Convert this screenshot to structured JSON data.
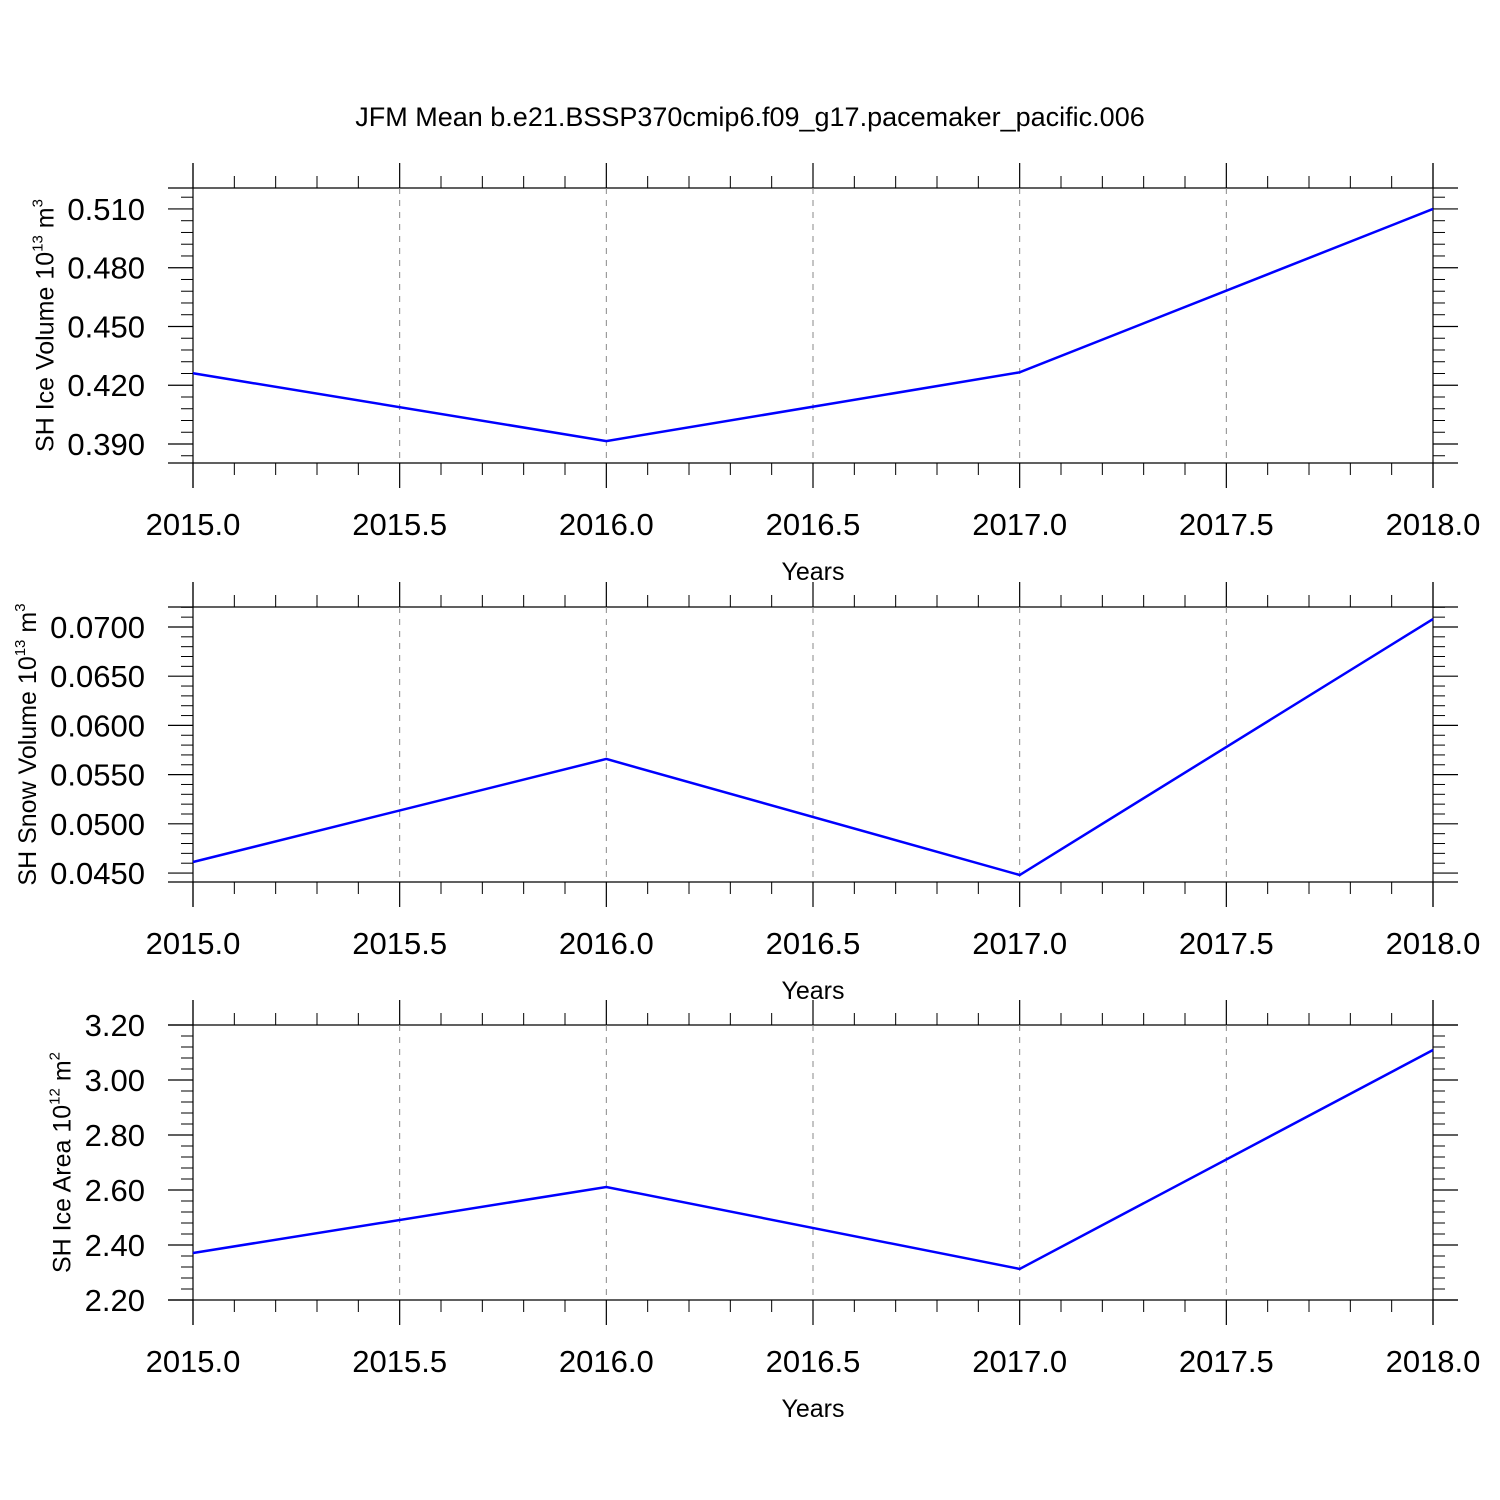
{
  "chart_data": [
    {
      "type": "line",
      "title": "JFM Mean b.e21.BSSP370cmip6.f09_g17.pacemaker_pacific.006",
      "x": [
        2015,
        2016,
        2017,
        2018
      ],
      "series": [
        {
          "color": "#0000ff",
          "values": [
            0.4261,
            0.3915,
            0.4266,
            0.51
          ]
        }
      ],
      "xlabel": "Years",
      "ylabel": {
        "text": "SH Ice Volume 10",
        "sup": "13",
        "unit": "m",
        "unit_sup": "3"
      },
      "xlim": [
        2015,
        2018
      ],
      "ylim": [
        0.3803,
        0.5207
      ],
      "xticks": [
        {
          "value": 2015,
          "label": "2015.0"
        },
        {
          "value": 2015.5,
          "label": "2015.5"
        },
        {
          "value": 2016,
          "label": "2016.0"
        },
        {
          "value": 2016.5,
          "label": "2016.5"
        },
        {
          "value": 2017,
          "label": "2017.0"
        },
        {
          "value": 2017.5,
          "label": "2017.5"
        },
        {
          "value": 2018,
          "label": "2018.0"
        }
      ],
      "yticks": [
        {
          "value": 0.39,
          "label": "0.390"
        },
        {
          "value": 0.42,
          "label": "0.420"
        },
        {
          "value": 0.45,
          "label": "0.450"
        },
        {
          "value": 0.48,
          "label": "0.480"
        },
        {
          "value": 0.51,
          "label": "0.510"
        }
      ],
      "grid": true
    },
    {
      "type": "line",
      "x": [
        2015,
        2016,
        2017,
        2018
      ],
      "series": [
        {
          "color": "#0000ff",
          "values": [
            0.04612,
            0.05659,
            0.0448,
            0.07081
          ]
        }
      ],
      "xlabel": "Years",
      "ylabel": {
        "text": "SH Snow Volume 10",
        "sup": "13",
        "unit": "m",
        "unit_sup": "3"
      },
      "xlim": [
        2015,
        2018
      ],
      "ylim": [
        0.04409,
        0.07203
      ],
      "xticks": [
        {
          "value": 2015,
          "label": "2015.0"
        },
        {
          "value": 2015.5,
          "label": "2015.5"
        },
        {
          "value": 2016,
          "label": "2016.0"
        },
        {
          "value": 2016.5,
          "label": "2016.5"
        },
        {
          "value": 2017,
          "label": "2017.0"
        },
        {
          "value": 2017.5,
          "label": "2017.5"
        },
        {
          "value": 2018,
          "label": "2018.0"
        }
      ],
      "yticks": [
        {
          "value": 0.045,
          "label": "0.0450"
        },
        {
          "value": 0.05,
          "label": "0.0500"
        },
        {
          "value": 0.055,
          "label": "0.0550"
        },
        {
          "value": 0.06,
          "label": "0.0600"
        },
        {
          "value": 0.065,
          "label": "0.0650"
        },
        {
          "value": 0.07,
          "label": "0.0700"
        }
      ],
      "grid": true
    },
    {
      "type": "line",
      "x": [
        2015,
        2016,
        2017,
        2018
      ],
      "series": [
        {
          "color": "#0000ff",
          "values": [
            2.371,
            2.611,
            2.313,
            3.109
          ]
        }
      ],
      "xlabel": "Years",
      "ylabel": {
        "text": "SH Ice Area 10",
        "sup": "12",
        "unit": "m",
        "unit_sup": "2"
      },
      "xlim": [
        2015,
        2018
      ],
      "ylim": [
        2.2,
        3.2
      ],
      "xticks": [
        {
          "value": 2015,
          "label": "2015.0"
        },
        {
          "value": 2015.5,
          "label": "2015.5"
        },
        {
          "value": 2016,
          "label": "2016.0"
        },
        {
          "value": 2016.5,
          "label": "2016.5"
        },
        {
          "value": 2017,
          "label": "2017.0"
        },
        {
          "value": 2017.5,
          "label": "2017.5"
        },
        {
          "value": 2018,
          "label": "2018.0"
        }
      ],
      "yticks": [
        {
          "value": 2.2,
          "label": "2.20"
        },
        {
          "value": 2.4,
          "label": "2.40"
        },
        {
          "value": 2.6,
          "label": "2.60"
        },
        {
          "value": 2.8,
          "label": "2.80"
        },
        {
          "value": 3.0,
          "label": "3.00"
        },
        {
          "value": 3.2,
          "label": "3.20"
        }
      ],
      "grid": true
    }
  ]
}
